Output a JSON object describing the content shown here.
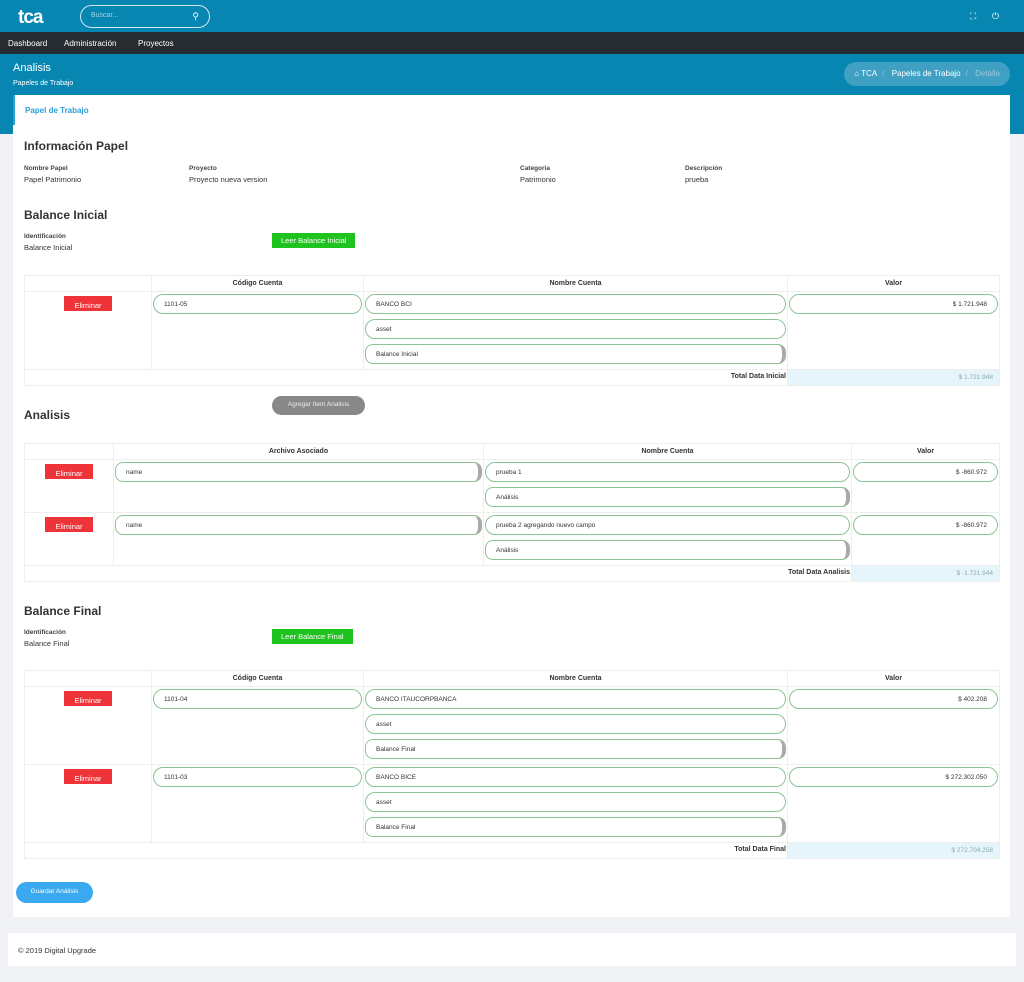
{
  "topbar": {
    "logo": "tca",
    "search_placeholder": "Buscar...",
    "icons": [
      "search-icon",
      "fullscreen-icon",
      "power-icon"
    ]
  },
  "nav": [
    "Dashboard",
    "Administración",
    "Proyectos"
  ],
  "header": {
    "title": "Analisis",
    "subtitle": "Papeles de Trabajo",
    "breadcrumb": [
      "TCA",
      "Papeles de Trabajo",
      "Detalle"
    ]
  },
  "card": {
    "title": "Papel de Trabajo"
  },
  "info": {
    "title": "Información Papel",
    "fields": [
      {
        "label": "Nombre Papel",
        "value": "Papel Patrimonio"
      },
      {
        "label": "Proyecto",
        "value": "Proyecto nueva version"
      },
      {
        "label": "Categoria",
        "value": "Patrimonio"
      },
      {
        "label": "Descripción",
        "value": "prueba"
      }
    ]
  },
  "balance_inicial": {
    "title": "Balance Inicial",
    "id_label": "Identificación",
    "id_value": "Balance Inicial",
    "button": "Leer Balance Inicial",
    "headers": [
      "",
      "Código Cuenta",
      "Nombre Cuenta",
      "Valor"
    ],
    "rows": [
      {
        "delete": "Eliminar",
        "codigo": "1101-05",
        "nombre": "BANCO BCI",
        "tipo": "asset",
        "select": "Balance Inicial",
        "valor": "$ 1.721.948"
      }
    ],
    "total_label": "Total Data Inicial",
    "total": "$ 1.721.948"
  },
  "analisis": {
    "title": "Analisis",
    "button": "Agregar Item Analisis",
    "headers": [
      "",
      "Archivo Asociado",
      "Nombre Cuenta",
      "Valor"
    ],
    "rows": [
      {
        "delete": "Eliminar",
        "archivo": "name",
        "nombre": "prueba 1",
        "select": "Análisis",
        "valor": "$ -860.972"
      },
      {
        "delete": "Eliminar",
        "archivo": "name",
        "nombre": "prueba 2 agregando nuevo campo",
        "select": "Análisis",
        "valor": "$ -860.972"
      }
    ],
    "total_label": "Total Data Analisis",
    "total": "$ -1.721.944"
  },
  "balance_final": {
    "title": "Balance Final",
    "id_label": "Identificación",
    "id_value": "Balance Final",
    "button": "Leer Balance Final",
    "headers": [
      "",
      "Código Cuenta",
      "Nombre Cuenta",
      "Valor"
    ],
    "rows": [
      {
        "delete": "Eliminar",
        "codigo": "1101-04",
        "nombre": "BANCO ITAUCORPBANCA",
        "tipo": "asset",
        "select": "Balance Final",
        "valor": "$ 402.208"
      },
      {
        "delete": "Eliminar",
        "codigo": "1101-03",
        "nombre": "BANCO BICE",
        "tipo": "asset",
        "select": "Balance Final",
        "valor": "$ 272.302.050"
      }
    ],
    "total_label": "Total Data Final",
    "total": "$ 272.704.258"
  },
  "save_button": "Guardar Análisis",
  "footer": "© 2019 Digital Upgrade"
}
